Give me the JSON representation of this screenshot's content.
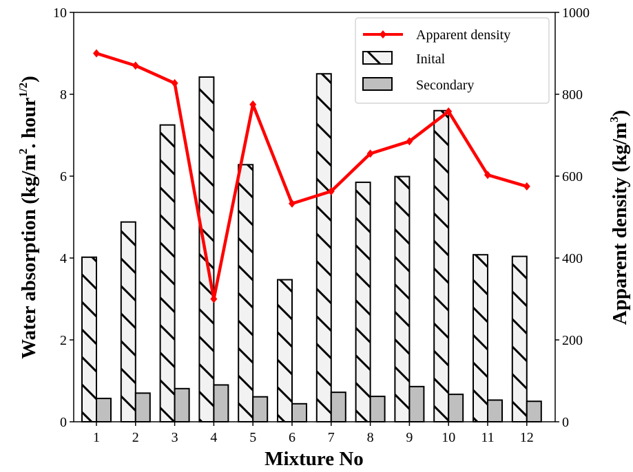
{
  "chart_data": {
    "type": "bar",
    "categories": [
      "1",
      "2",
      "3",
      "4",
      "5",
      "6",
      "7",
      "8",
      "9",
      "10",
      "11",
      "12"
    ],
    "series": [
      {
        "name": "Inital",
        "type": "bar",
        "axis": "left",
        "color": "#f2f2f2",
        "hatch": "\\",
        "values": [
          4.02,
          4.88,
          7.25,
          8.42,
          6.28,
          3.47,
          8.5,
          5.85,
          5.99,
          7.6,
          4.08,
          4.04
        ]
      },
      {
        "name": "Secondary",
        "type": "bar",
        "axis": "left",
        "color": "#bfbfbf",
        "values": [
          0.57,
          0.7,
          0.81,
          0.9,
          0.61,
          0.44,
          0.72,
          0.62,
          0.86,
          0.67,
          0.53,
          0.5
        ]
      },
      {
        "name": "Apparent density",
        "type": "line",
        "axis": "right",
        "color": "#ff0000",
        "marker": "diamond",
        "values": [
          900,
          870,
          827,
          300,
          775,
          533,
          563,
          655,
          685,
          758,
          603,
          575
        ]
      }
    ],
    "xlabel": "Mixture No",
    "ylabel_left": {
      "main": "Water absorption (kg/m",
      "sup1": "2",
      "mid": ". hour",
      "sup2": "1/2",
      "end": ")"
    },
    "ylabel_right": {
      "main": "Apparent density (kg/m",
      "sup": "3",
      "end": ")"
    },
    "ylim_left": [
      0,
      10
    ],
    "ylim_right": [
      0,
      1000
    ],
    "yticks_left": [
      "0",
      "2",
      "4",
      "6",
      "8",
      "10"
    ],
    "yticks_right": [
      "0",
      "200",
      "400",
      "600",
      "800",
      "1000"
    ],
    "legend_position": "top-right",
    "grid": false
  }
}
